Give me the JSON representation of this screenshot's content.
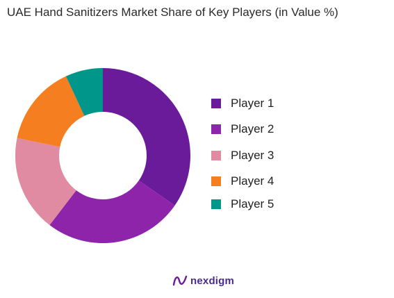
{
  "chart_data": {
    "type": "pie",
    "title": "UAE Hand Sanitizers Market Share of Key Players (in Value %)",
    "categories": [
      "Player 1",
      "Player 2",
      "Player 3",
      "Player 4",
      "Player 5"
    ],
    "values": [
      35,
      26,
      18,
      15,
      7
    ],
    "colors": [
      "#6a1b9a",
      "#8e24aa",
      "#e08ba2",
      "#f57f20",
      "#00968a"
    ],
    "hole": true,
    "legend_position": "right"
  },
  "brand": {
    "name": "nexdigm",
    "icon": "nexdigm-logo-icon",
    "color": "#4a2b8c"
  }
}
